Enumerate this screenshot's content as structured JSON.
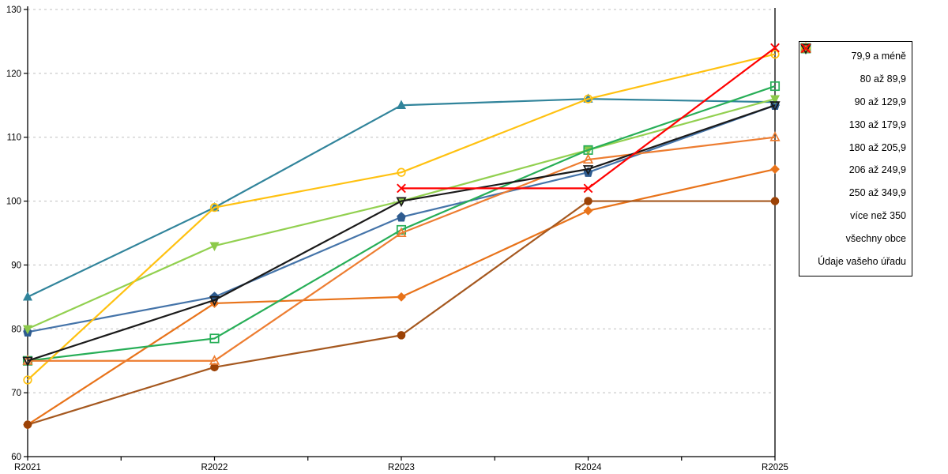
{
  "chart_data": {
    "type": "line",
    "title": "",
    "xlabel": "",
    "ylabel": "",
    "categories": [
      "R2021",
      "R2022",
      "R2023",
      "R2024",
      "R2025"
    ],
    "ylim": [
      60,
      130
    ],
    "yticks": [
      60,
      70,
      80,
      90,
      100,
      110,
      120,
      130
    ],
    "grid": "horizontal-dashed",
    "grid_color": "#BFBFBF",
    "axis_color": "#000000",
    "legend_position": "right",
    "series": [
      {
        "name": "79,9 a méně",
        "color": "#E8731A",
        "marker_color": "#E8731A",
        "marker": "diamond",
        "filled": true,
        "values": [
          65,
          84,
          85,
          98.5,
          105
        ]
      },
      {
        "name": "80 až 89,9",
        "color": "#A5581F",
        "marker_color": "#9C4206",
        "marker": "circle",
        "filled": true,
        "values": [
          65,
          74,
          79,
          100,
          100
        ]
      },
      {
        "name": "90 až 129,9",
        "color": "#31849B",
        "marker_color": "#31849B",
        "marker": "triangle-up",
        "filled": true,
        "values": [
          85,
          99,
          115,
          116,
          115.5
        ]
      },
      {
        "name": "130 až 179,9",
        "color": "#4574A9",
        "marker_color": "#2E5B8F",
        "marker": "pentagon",
        "filled": true,
        "values": [
          79.5,
          85,
          97.5,
          104.5,
          115
        ]
      },
      {
        "name": "180 až 205,9",
        "color": "#92D050",
        "marker_color": "#8CC94A",
        "marker": "triangle-down",
        "filled": true,
        "values": [
          80,
          93,
          100,
          108,
          116
        ]
      },
      {
        "name": "206 až 249,9",
        "color": "#27AE57",
        "marker_color": "#27AE57",
        "marker": "square",
        "filled": false,
        "values": [
          75,
          78.5,
          95.5,
          108,
          118
        ]
      },
      {
        "name": "250 až 349,9",
        "color": "#FFC110",
        "marker_color": "#FFC110",
        "marker": "circle",
        "filled": false,
        "values": [
          72,
          99,
          104.5,
          116,
          123
        ]
      },
      {
        "name": "více než 350",
        "color": "#ED7D31",
        "marker_color": "#ED7D31",
        "marker": "triangle-up",
        "filled": false,
        "values": [
          75,
          75,
          95,
          106.5,
          110
        ]
      },
      {
        "name": "všechny obce",
        "color": "#1A1A1A",
        "marker_color": "#1A1A1A",
        "marker": "triangle-down",
        "filled": false,
        "values": [
          75,
          84.5,
          100,
          105,
          115
        ]
      },
      {
        "name": "Údaje vašeho úřadu",
        "color": "#FF0000",
        "marker_color": "#FF0000",
        "marker": "x",
        "filled": false,
        "values": [
          null,
          null,
          102,
          102,
          124
        ]
      }
    ]
  }
}
